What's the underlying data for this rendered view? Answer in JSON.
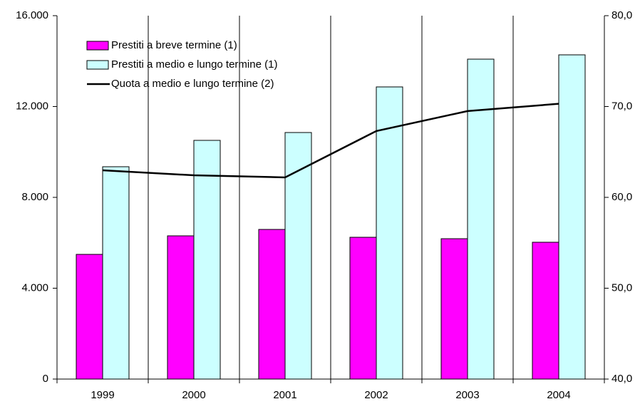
{
  "chart_data": {
    "type": "bar",
    "categories": [
      "1999",
      "2000",
      "2001",
      "2002",
      "2003",
      "2004"
    ],
    "series": [
      {
        "name": "Prestiti a breve termine (1)",
        "type": "bar",
        "color": "#ff00ff",
        "values": [
          5490,
          6306,
          6588,
          6243,
          6180,
          6024
        ]
      },
      {
        "name": "Prestiti a medio e lungo termine (1)",
        "type": "bar",
        "color": "#ccffff",
        "values": [
          9349,
          10510,
          10855,
          12863,
          14086,
          14275
        ]
      },
      {
        "name": "Quota a medio e lungo termine (2)",
        "type": "line",
        "axis": "y2",
        "color": "#000000",
        "values": [
          62.98,
          62.43,
          62.2,
          67.3,
          69.5,
          70.3
        ]
      }
    ],
    "ylim": [
      0,
      16000
    ],
    "yticks": [
      0,
      {
        "value": 4000,
        "label": "4.000"
      },
      {
        "value": 8000,
        "label": "8.000"
      },
      {
        "value": 12000,
        "label": "12.000"
      },
      {
        "value": 16000,
        "label": "16.000"
      }
    ],
    "y2lim": [
      40,
      80
    ],
    "y2ticks": [
      {
        "value": 40,
        "label": "40,0"
      },
      {
        "value": 50,
        "label": "50,0"
      },
      {
        "value": 60,
        "label": "60,0"
      },
      {
        "value": 70,
        "label": "70,0"
      },
      {
        "value": 80,
        "label": "80,0"
      }
    ],
    "legend": "top-left"
  }
}
